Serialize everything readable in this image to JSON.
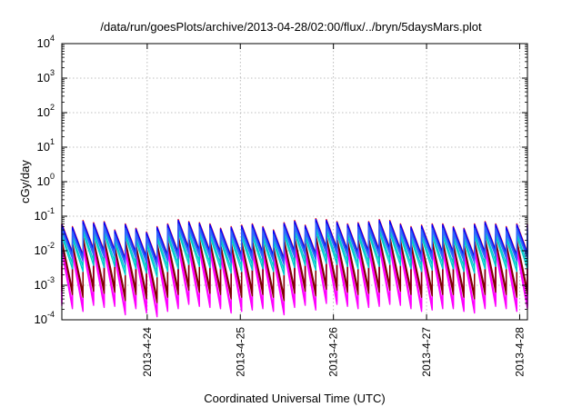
{
  "chart_data": {
    "type": "line",
    "title": "/data/run/goesPlots/archive/2013-04-28/02:00/flux/../bryn/5daysMars.plot",
    "xlabel": "Coordinated Universal Time (UTC)",
    "ylabel": "cGy/day",
    "yscale": "log",
    "ylim": [
      0.0001,
      10000
    ],
    "xlim": [
      "2013-04-23T02:00",
      "2013-04-28T02:00"
    ],
    "grid": true,
    "legend": "none",
    "x_ticks": [
      "2013-4-24",
      "2013-4-25",
      "2013-4-26",
      "2013-4-27",
      "2013-4-28"
    ],
    "x_tick_times": [
      "2013-04-24T00:00",
      "2013-04-25T00:00",
      "2013-04-26T00:00",
      "2013-04-27T00:00",
      "2013-04-28T00:00"
    ],
    "y_ticks": [
      {
        "base": "10",
        "exp": "-4",
        "value": 0.0001
      },
      {
        "base": "10",
        "exp": "-3",
        "value": 0.001
      },
      {
        "base": "10",
        "exp": "-2",
        "value": 0.01
      },
      {
        "base": "10",
        "exp": "-1",
        "value": 0.1
      },
      {
        "base": "10",
        "exp": "0",
        "value": 1
      },
      {
        "base": "10",
        "exp": "1",
        "value": 10
      },
      {
        "base": "10",
        "exp": "2",
        "value": 100
      },
      {
        "base": "10",
        "exp": "3",
        "value": 1000
      },
      {
        "base": "10",
        "exp": "4",
        "value": 10000
      }
    ],
    "cycle_hours": 2.727,
    "peaks": [
      0.06,
      0.05,
      0.075,
      0.065,
      0.07,
      0.04,
      0.06,
      0.045,
      0.035,
      0.05,
      0.06,
      0.08,
      0.07,
      0.065,
      0.06,
      0.045,
      0.05,
      0.055,
      0.06,
      0.05,
      0.04,
      0.065,
      0.075,
      0.055,
      0.085,
      0.08,
      0.07,
      0.06,
      0.065,
      0.07,
      0.08,
      0.075,
      0.06,
      0.05,
      0.055,
      0.06,
      0.06,
      0.05,
      0.045,
      0.06,
      0.07,
      0.06,
      0.05,
      0.06
    ],
    "series": [
      {
        "color": "#ff00ff",
        "peak_factor": 0.26,
        "trough_factor": 0.0045
      },
      {
        "color": "#ff00ff",
        "peak_factor": 0.2,
        "trough_factor": 0.004
      },
      {
        "color": "#ff00ff",
        "peak_factor": 0.16,
        "trough_factor": 0.0035
      },
      {
        "color": "#800000",
        "peak_factor": 0.3,
        "trough_factor": 0.009
      },
      {
        "color": "#800000",
        "peak_factor": 0.34,
        "trough_factor": 0.012
      },
      {
        "color": "#00cccc",
        "peak_factor": 0.45,
        "trough_factor": 0.05
      },
      {
        "color": "#00cccc",
        "peak_factor": 0.52,
        "trough_factor": 0.07
      },
      {
        "color": "#ff0000",
        "peak_factor": 1.0,
        "trough_factor": 0.15
      },
      {
        "color": "#0000ff",
        "peak_factor": 0.95,
        "trough_factor": 0.14
      },
      {
        "color": "#2255ee",
        "peak_factor": 0.75,
        "trough_factor": 0.12
      },
      {
        "color": "#3366ff",
        "peak_factor": 0.65,
        "trough_factor": 0.1
      }
    ]
  }
}
